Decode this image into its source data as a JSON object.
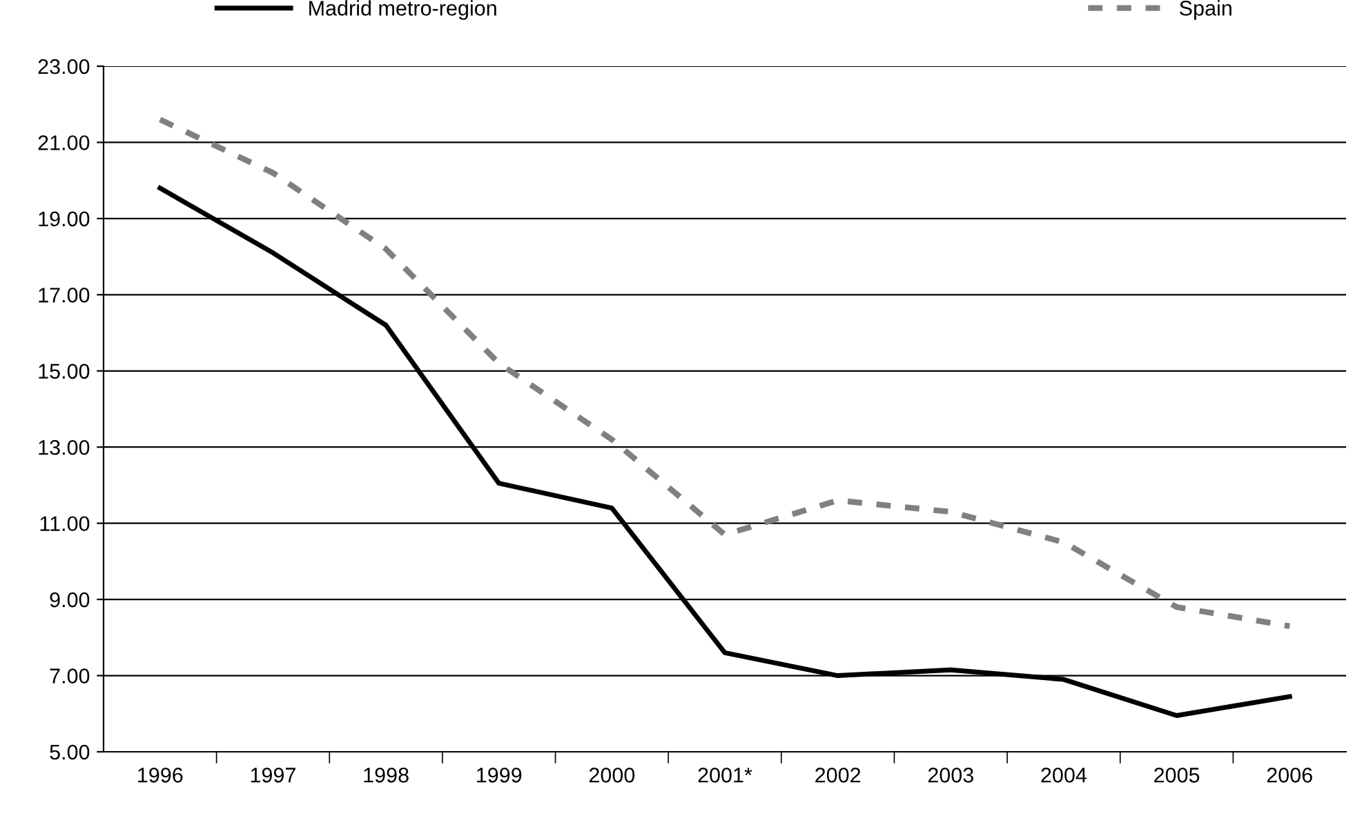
{
  "chart_data": {
    "type": "line",
    "categories": [
      "1996",
      "1997",
      "1998",
      "1999",
      "2000",
      "2001*",
      "2002",
      "2003",
      "2004",
      "2005",
      "2006"
    ],
    "series": [
      {
        "name": "Madrid metro-region",
        "color": "#000000",
        "line_style": "solid",
        "values": [
          19.8,
          18.1,
          16.2,
          12.05,
          11.4,
          7.6,
          7.0,
          7.15,
          6.9,
          5.95,
          6.45
        ]
      },
      {
        "name": "Spain",
        "color": "#808080",
        "line_style": "dashed",
        "values": [
          21.6,
          20.2,
          18.2,
          15.2,
          13.2,
          10.7,
          11.6,
          11.3,
          10.5,
          8.8,
          8.3
        ]
      }
    ],
    "ylim": [
      5,
      23
    ],
    "yticks": [
      {
        "value": 5,
        "label": "5.00"
      },
      {
        "value": 7,
        "label": "7.00"
      },
      {
        "value": 9,
        "label": "9.00"
      },
      {
        "value": 11,
        "label": "11.00"
      },
      {
        "value": 13,
        "label": "13.00"
      },
      {
        "value": 15,
        "label": "15.00"
      },
      {
        "value": 17,
        "label": "17.00"
      },
      {
        "value": 19,
        "label": "19.00"
      },
      {
        "value": 21,
        "label": "21.00"
      },
      {
        "value": 23,
        "label": "23.00"
      }
    ],
    "grid": "y",
    "legend": "top",
    "marker": "none"
  }
}
